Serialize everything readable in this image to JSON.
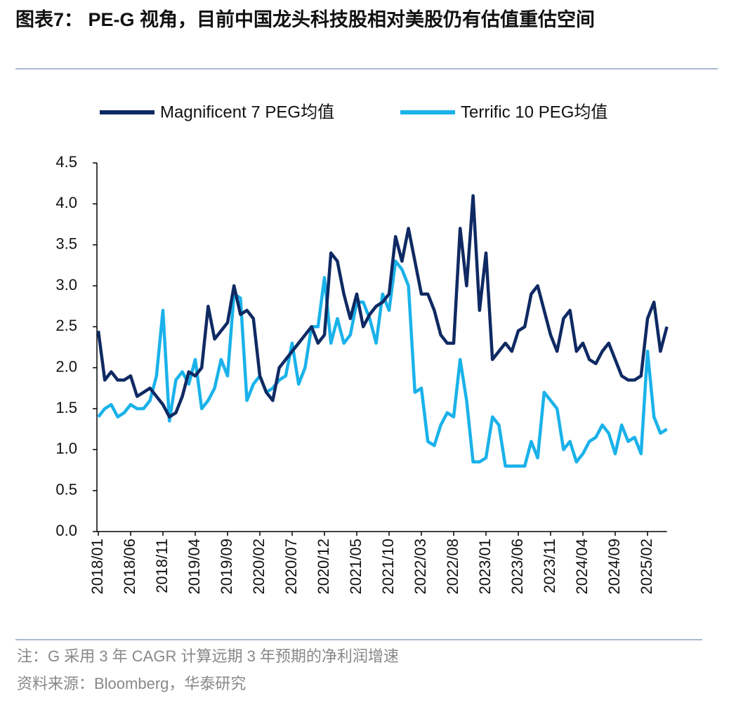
{
  "chart_data": {
    "type": "line",
    "title": "图表7： PE-G 视角，目前中国龙头科技股相对美股仍有估值重估空间",
    "note": "注：G 采用 3 年 CAGR 计算远期 3 年预期的净利润增速",
    "source": "资料来源：Bloomberg，华泰研究",
    "categories": [
      "2018/01",
      null,
      null,
      null,
      null,
      "2018/06",
      null,
      null,
      null,
      null,
      "2018/11",
      null,
      null,
      null,
      null,
      "2019/04",
      null,
      null,
      null,
      null,
      "2019/09",
      null,
      null,
      null,
      null,
      "2020/02",
      null,
      null,
      null,
      null,
      "2020/07",
      null,
      null,
      null,
      null,
      "2020/12",
      null,
      null,
      null,
      null,
      "2021/05",
      null,
      null,
      null,
      null,
      "2021/10",
      null,
      null,
      null,
      null,
      "2022/03",
      null,
      null,
      null,
      null,
      "2022/08",
      null,
      null,
      null,
      null,
      "2023/01",
      null,
      null,
      null,
      null,
      "2023/06",
      null,
      null,
      null,
      null,
      "2023/11",
      null,
      null,
      null,
      null,
      "2024/04",
      null,
      null,
      null,
      null,
      "2024/09",
      null,
      null,
      null,
      null,
      "2025/02",
      null,
      null,
      null
    ],
    "series": [
      {
        "name": "Magnificent 7 PEG均值",
        "color": "#0f2a63",
        "values": [
          2.45,
          1.85,
          1.95,
          1.85,
          1.85,
          1.9,
          1.65,
          1.7,
          1.75,
          1.65,
          1.55,
          1.4,
          1.45,
          1.65,
          1.95,
          1.9,
          2.0,
          2.75,
          2.35,
          2.45,
          2.55,
          3.0,
          2.65,
          2.7,
          2.6,
          1.9,
          1.7,
          1.6,
          2.0,
          2.1,
          2.2,
          2.3,
          2.4,
          2.5,
          2.3,
          2.4,
          3.4,
          3.3,
          2.9,
          2.6,
          2.9,
          2.5,
          2.65,
          2.75,
          2.8,
          2.9,
          3.6,
          3.3,
          3.7,
          3.3,
          2.9,
          2.9,
          2.7,
          2.4,
          2.3,
          2.3,
          3.7,
          3.0,
          4.1,
          2.7,
          3.4,
          2.1,
          2.2,
          2.3,
          2.2,
          2.45,
          2.5,
          2.9,
          3.0,
          2.7,
          2.4,
          2.2,
          2.6,
          2.7,
          2.2,
          2.3,
          2.1,
          2.05,
          2.2,
          2.3,
          2.1,
          1.9,
          1.85,
          1.85,
          1.9,
          2.6,
          2.8,
          2.2,
          2.5
        ]
      },
      {
        "name": "Terrific 10 PEG均值",
        "color": "#1ab2ea",
        "values": [
          1.4,
          1.5,
          1.55,
          1.4,
          1.45,
          1.55,
          1.5,
          1.5,
          1.6,
          1.9,
          2.7,
          1.35,
          1.85,
          1.95,
          1.8,
          2.1,
          1.5,
          1.6,
          1.75,
          2.1,
          1.9,
          2.9,
          2.85,
          1.6,
          1.8,
          1.9,
          1.7,
          1.75,
          1.85,
          1.9,
          2.3,
          1.8,
          2.0,
          2.5,
          2.5,
          3.1,
          2.3,
          2.6,
          2.3,
          2.4,
          2.8,
          2.8,
          2.6,
          2.3,
          2.9,
          2.7,
          3.3,
          3.2,
          3.0,
          1.7,
          1.75,
          1.1,
          1.05,
          1.3,
          1.45,
          1.4,
          2.1,
          1.6,
          0.85,
          0.85,
          0.9,
          1.4,
          1.3,
          0.8,
          0.8,
          0.8,
          0.8,
          1.1,
          0.9,
          1.7,
          1.6,
          1.5,
          1.0,
          1.1,
          0.85,
          0.95,
          1.1,
          1.15,
          1.3,
          1.2,
          0.95,
          1.3,
          1.1,
          1.15,
          0.95,
          2.2,
          1.4,
          1.2,
          1.25
        ]
      }
    ],
    "ylim": [
      0,
      4.5
    ],
    "yticks": [
      {
        "value": 0,
        "label": "0.0"
      },
      0.5,
      {
        "value": 1,
        "label": "1.0"
      },
      1.5,
      {
        "value": 2,
        "label": "2.0"
      },
      2.5,
      {
        "value": 3,
        "label": "3.0"
      },
      3.5,
      {
        "value": 4,
        "label": "4.0"
      },
      4.5
    ],
    "legend": "top"
  }
}
